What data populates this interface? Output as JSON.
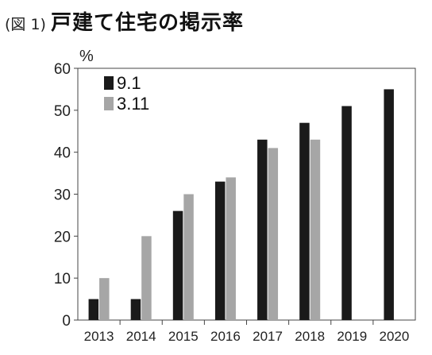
{
  "figure": {
    "number": "(図 1)",
    "title": "戸建て住宅の掲示率"
  },
  "chart_data": {
    "type": "bar",
    "title": "戸建て住宅の掲示率",
    "ylabel": "%",
    "xlabel": "",
    "ylim": [
      0,
      60
    ],
    "yticks": [
      0,
      10,
      20,
      30,
      40,
      50,
      60
    ],
    "categories": [
      "2013",
      "2014",
      "2015",
      "2016",
      "2017",
      "2018",
      "2019",
      "2020"
    ],
    "series": [
      {
        "name": "9.1",
        "color": "#1a1a1a",
        "values": [
          5,
          5,
          26,
          33,
          43,
          47,
          51,
          55
        ]
      },
      {
        "name": "3.11",
        "color": "#a6a6a6",
        "values": [
          10,
          20,
          30,
          34,
          41,
          43,
          null,
          null
        ]
      }
    ],
    "grid": false,
    "legend_position": "top-left"
  }
}
